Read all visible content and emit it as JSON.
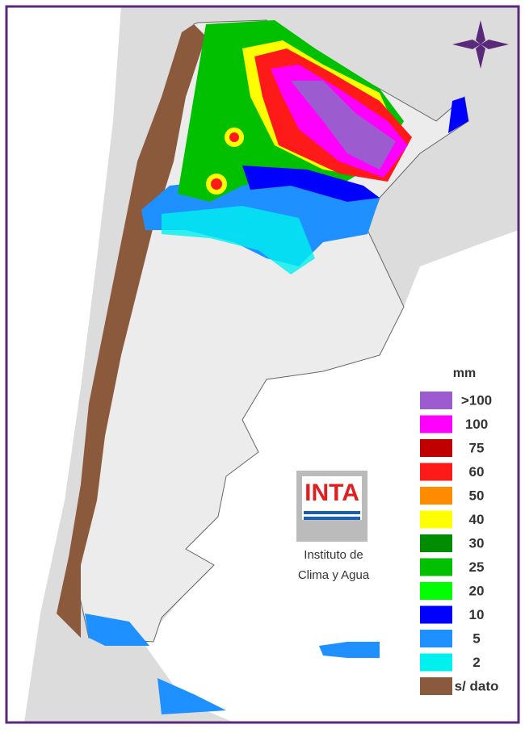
{
  "legend": {
    "title": "mm",
    "items": [
      {
        "label": ">100",
        "color": "#9c5ccf"
      },
      {
        "label": "100",
        "color": "#ff00ff"
      },
      {
        "label": "75",
        "color": "#c00000"
      },
      {
        "label": "60",
        "color": "#ff1a1a"
      },
      {
        "label": "50",
        "color": "#ff8c00"
      },
      {
        "label": "40",
        "color": "#ffff00"
      },
      {
        "label": "30",
        "color": "#008c00"
      },
      {
        "label": "25",
        "color": "#00c000"
      },
      {
        "label": "20",
        "color": "#00ff00"
      },
      {
        "label": "10",
        "color": "#0000ff"
      },
      {
        "label": "5",
        "color": "#1e90ff"
      },
      {
        "label": "2",
        "color": "#00f0f0"
      },
      {
        "label": "s/ dato",
        "color": "#8b5a3c"
      }
    ]
  },
  "logo": {
    "text": "INTA",
    "caption": [
      "Instituto de",
      "Clima y Agua"
    ]
  }
}
